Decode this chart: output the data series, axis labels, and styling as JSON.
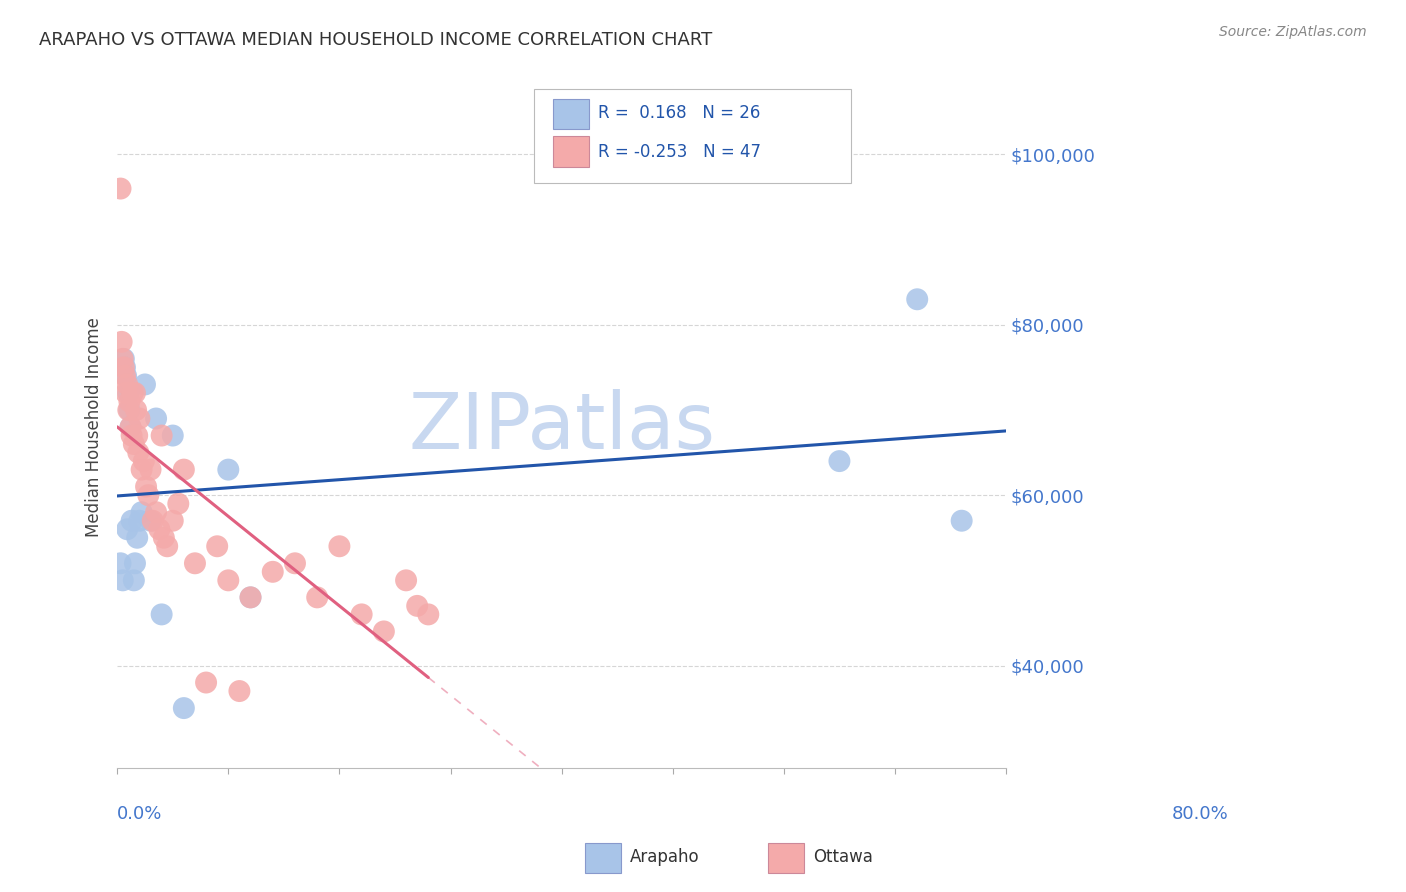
{
  "title": "ARAPAHO VS OTTAWA MEDIAN HOUSEHOLD INCOME CORRELATION CHART",
  "source": "Source: ZipAtlas.com",
  "ylabel": "Median Household Income",
  "ytick_labels": [
    "$40,000",
    "$60,000",
    "$80,000",
    "$100,000"
  ],
  "ytick_values": [
    40000,
    60000,
    80000,
    100000
  ],
  "ylim": [
    28000,
    108000
  ],
  "xlim": [
    0.0,
    0.8
  ],
  "arapaho_r": 0.168,
  "arapaho_n": 26,
  "ottawa_r": -0.253,
  "ottawa_n": 47,
  "arapaho_color": "#A8C4E8",
  "ottawa_color": "#F4AAAA",
  "trend_arapaho_color": "#2255AA",
  "trend_ottawa_color": "#E06080",
  "watermark": "ZIPatlas",
  "watermark_color": "#C8D8F0",
  "arapaho_x": [
    0.003,
    0.005,
    0.006,
    0.007,
    0.008,
    0.009,
    0.01,
    0.011,
    0.012,
    0.013,
    0.015,
    0.016,
    0.018,
    0.02,
    0.022,
    0.025,
    0.03,
    0.035,
    0.04,
    0.05,
    0.06,
    0.1,
    0.12,
    0.65,
    0.72,
    0.76
  ],
  "arapaho_y": [
    52000,
    50000,
    76000,
    75000,
    74000,
    56000,
    72000,
    70000,
    68000,
    57000,
    50000,
    52000,
    55000,
    57000,
    58000,
    73000,
    57000,
    69000,
    46000,
    67000,
    35000,
    63000,
    48000,
    64000,
    83000,
    57000
  ],
  "ottawa_x": [
    0.003,
    0.004,
    0.005,
    0.006,
    0.007,
    0.008,
    0.009,
    0.01,
    0.011,
    0.012,
    0.013,
    0.014,
    0.015,
    0.016,
    0.017,
    0.018,
    0.019,
    0.02,
    0.022,
    0.024,
    0.026,
    0.028,
    0.03,
    0.032,
    0.035,
    0.038,
    0.04,
    0.042,
    0.045,
    0.05,
    0.055,
    0.06,
    0.07,
    0.08,
    0.09,
    0.1,
    0.11,
    0.12,
    0.14,
    0.16,
    0.18,
    0.2,
    0.22,
    0.24,
    0.26,
    0.27,
    0.28
  ],
  "ottawa_y": [
    96000,
    78000,
    76000,
    75000,
    74000,
    72000,
    73000,
    70000,
    71000,
    68000,
    67000,
    72000,
    66000,
    72000,
    70000,
    67000,
    65000,
    69000,
    63000,
    64000,
    61000,
    60000,
    63000,
    57000,
    58000,
    56000,
    67000,
    55000,
    54000,
    57000,
    59000,
    63000,
    52000,
    38000,
    54000,
    50000,
    37000,
    48000,
    51000,
    52000,
    48000,
    54000,
    46000,
    44000,
    50000,
    47000,
    46000
  ],
  "ottawa_trend_solid_end": 0.28,
  "legend_text_color": "#2255AA",
  "legend_r1_color": "#2255AA",
  "legend_r2_color": "#2255AA"
}
